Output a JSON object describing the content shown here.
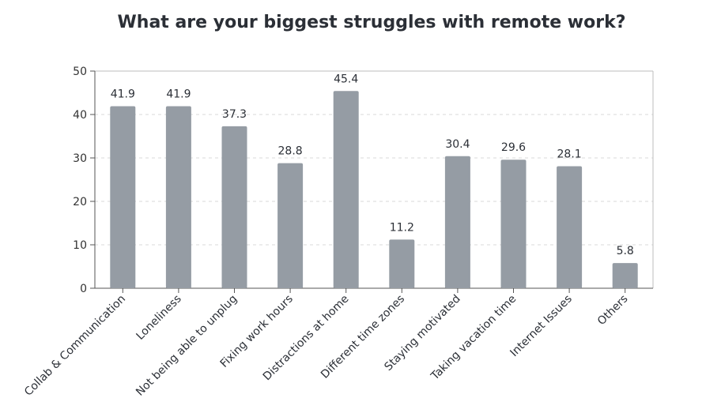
{
  "chart_data": {
    "type": "bar",
    "title": "What are your biggest struggles with remote work?",
    "categories": [
      "Collab & Communication",
      "Loneliness",
      "Not being able to unplug",
      "Fixing work hours",
      "Distractions at home",
      "Different time zones",
      "Staying motivated",
      "Taking vacation time",
      "Internet Issues",
      "Others"
    ],
    "values": [
      41.9,
      41.9,
      37.3,
      28.8,
      45.4,
      11.2,
      30.4,
      29.6,
      28.1,
      5.8
    ],
    "ylim": [
      0,
      50
    ],
    "yticks": [
      0,
      10,
      20,
      30,
      40,
      50
    ],
    "grid": true,
    "bar_color": "#959ca4"
  }
}
